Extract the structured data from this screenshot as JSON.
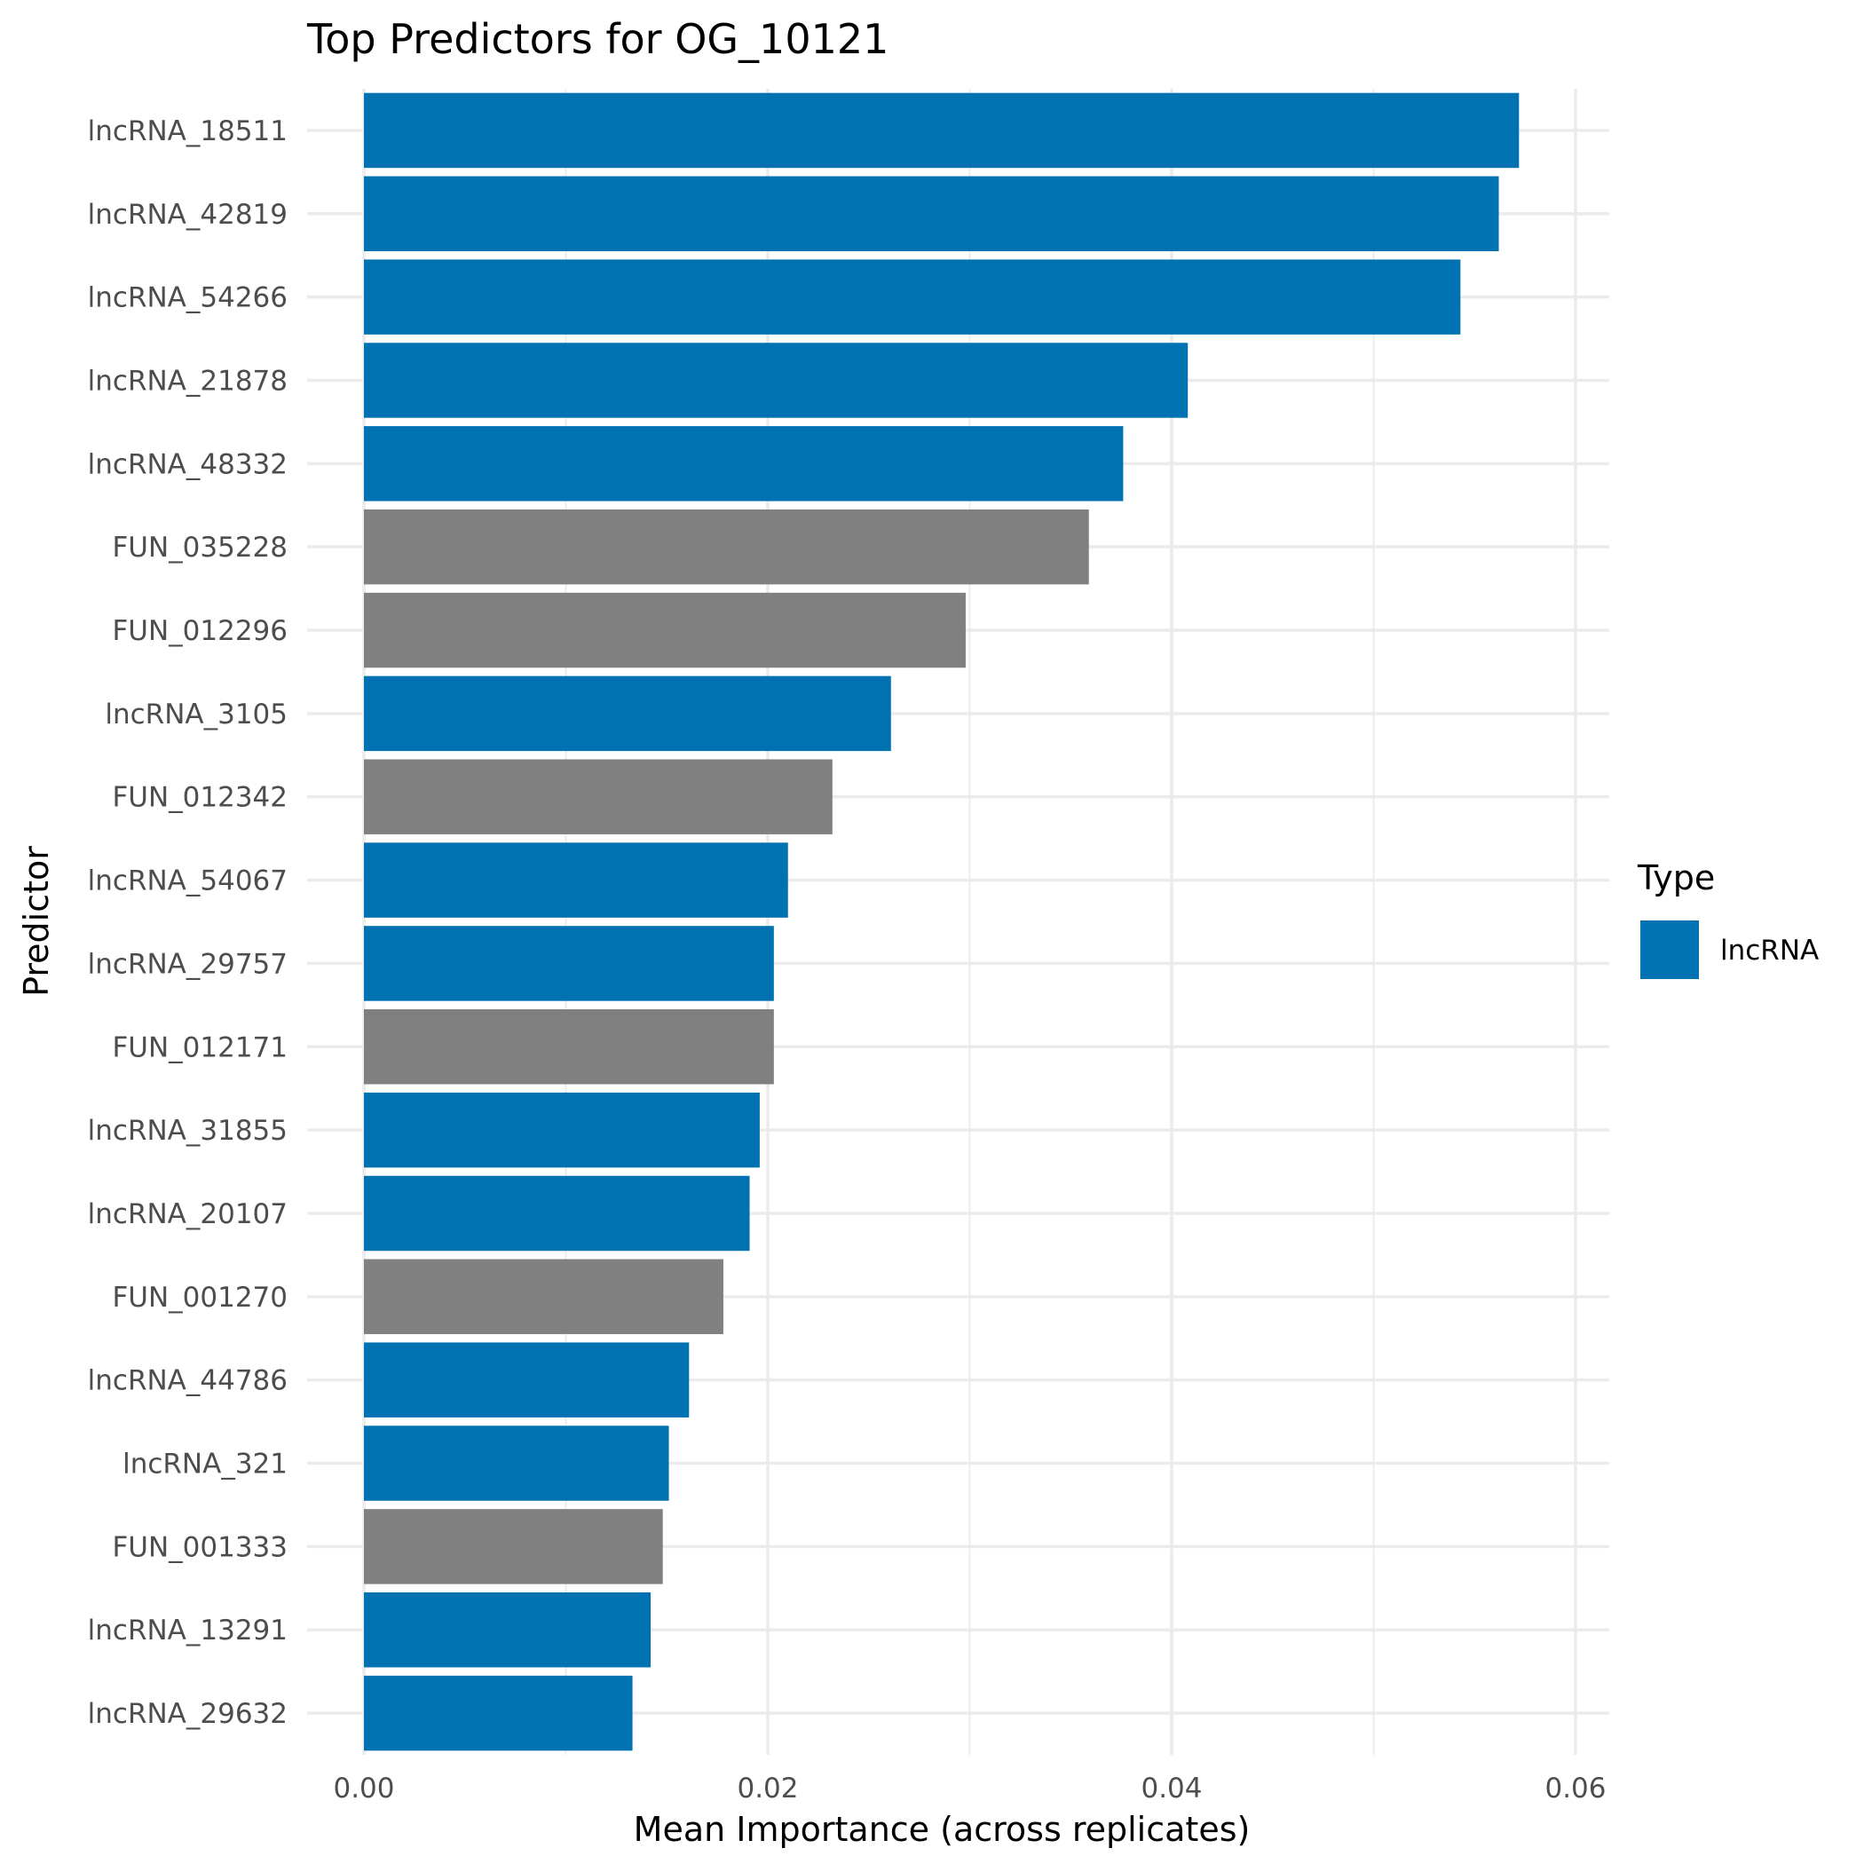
{
  "chart_data": {
    "type": "bar",
    "orientation": "horizontal",
    "title": "Top Predictors for OG_10121",
    "xlabel": "Mean Importance (across replicates)",
    "ylabel": "Predictor",
    "xlim": [
      0,
      0.06
    ],
    "x_ticks": [
      0.0,
      0.02,
      0.04,
      0.06
    ],
    "x_tick_labels": [
      "0.00",
      "0.02",
      "0.04",
      "0.06"
    ],
    "grid": true,
    "legend": {
      "title": "Type",
      "position": "right",
      "entries": [
        {
          "label": "lncRNA",
          "color": "#0072B2"
        }
      ]
    },
    "colors": {
      "lncRNA": "#0072B2",
      "other": "#808080"
    },
    "categories": [
      "lncRNA_18511",
      "lncRNA_42819",
      "lncRNA_54266",
      "lncRNA_21878",
      "lncRNA_48332",
      "FUN_035228",
      "FUN_012296",
      "lncRNA_3105",
      "FUN_012342",
      "lncRNA_54067",
      "lncRNA_29757",
      "FUN_012171",
      "lncRNA_31855",
      "lncRNA_20107",
      "FUN_001270",
      "lncRNA_44786",
      "lncRNA_321",
      "FUN_001333",
      "lncRNA_13291",
      "lncRNA_29632"
    ],
    "values": [
      0.0572,
      0.0562,
      0.0543,
      0.0408,
      0.0376,
      0.0359,
      0.0298,
      0.0261,
      0.0232,
      0.021,
      0.0203,
      0.0203,
      0.0196,
      0.0191,
      0.0178,
      0.0161,
      0.0151,
      0.0148,
      0.0142,
      0.0133
    ],
    "types": [
      "lncRNA",
      "lncRNA",
      "lncRNA",
      "lncRNA",
      "lncRNA",
      "other",
      "other",
      "lncRNA",
      "other",
      "lncRNA",
      "lncRNA",
      "other",
      "lncRNA",
      "lncRNA",
      "other",
      "lncRNA",
      "lncRNA",
      "other",
      "lncRNA",
      "lncRNA"
    ]
  }
}
